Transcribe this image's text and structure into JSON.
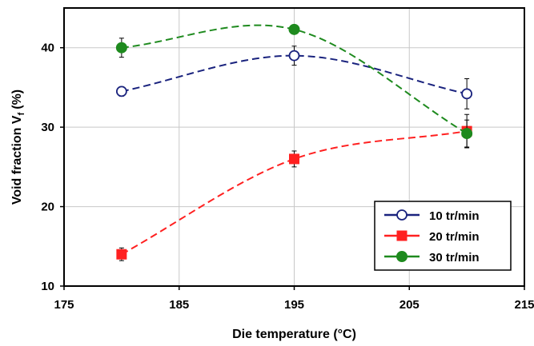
{
  "chart_data": {
    "type": "line",
    "xlabel": "Die temperature (°C)",
    "ylabel": "Void fraction V",
    "ylabel_sub": "f",
    "ylabel_unit": "(%)",
    "xlim": [
      175,
      215
    ],
    "ylim": [
      10,
      45
    ],
    "xticks": [
      "175",
      "185",
      "195",
      "205",
      "215"
    ],
    "yticks": [
      "10",
      "20",
      "30",
      "40"
    ],
    "grid": true,
    "legend_position": "bottom-right",
    "series": [
      {
        "name": "10 tr/min",
        "color": "#1a237e",
        "marker": "open-circle",
        "line_style": "dashed",
        "x": [
          180,
          195,
          210
        ],
        "y": [
          34.5,
          39.0,
          34.2
        ],
        "err": [
          0.6,
          1.2,
          1.9
        ]
      },
      {
        "name": "20 tr/min",
        "color": "#ff2020",
        "marker": "square",
        "line_style": "dashed",
        "x": [
          180,
          195,
          210
        ],
        "y": [
          14.0,
          26.0,
          29.5
        ],
        "err": [
          0.8,
          1.0,
          2.1
        ]
      },
      {
        "name": "30 tr/min",
        "color": "#1e8a1e",
        "marker": "filled-circle",
        "line_style": "dashed",
        "x": [
          180,
          195,
          210
        ],
        "y": [
          40.0,
          42.3,
          29.2
        ],
        "err": [
          1.2,
          0.3,
          1.7
        ]
      }
    ]
  }
}
